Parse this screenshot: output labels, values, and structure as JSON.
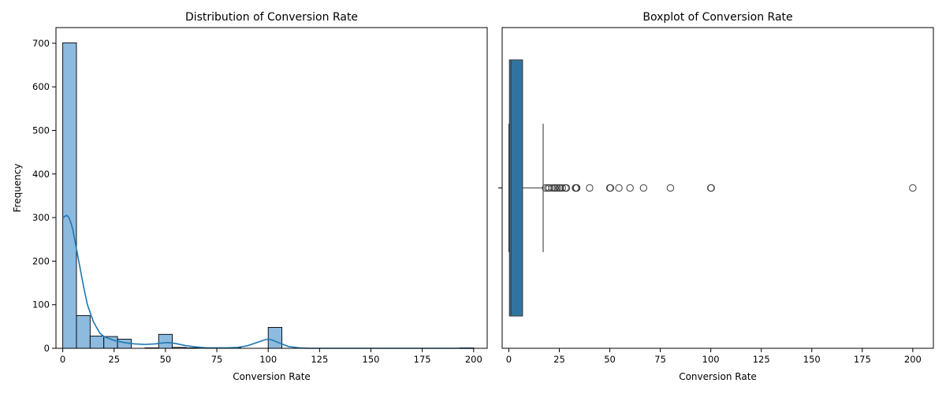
{
  "chart_data": [
    {
      "type": "bar",
      "subtype": "histogram-with-kde",
      "title": "Distribution of Conversion Rate",
      "xlabel": "Conversion Rate",
      "ylabel": "Frequency",
      "xlim": [
        -3.3,
        206.6
      ],
      "ylim": [
        0,
        736
      ],
      "xticks": [
        0,
        25,
        50,
        75,
        100,
        125,
        150,
        175,
        200
      ],
      "yticks": [
        0,
        100,
        200,
        300,
        400,
        500,
        600,
        700
      ],
      "bin_width": 6.67,
      "bins": [
        {
          "x0": 0.0,
          "x1": 6.67,
          "count": 701
        },
        {
          "x0": 6.67,
          "x1": 13.33,
          "count": 75
        },
        {
          "x0": 13.33,
          "x1": 20.0,
          "count": 28
        },
        {
          "x0": 20.0,
          "x1": 26.67,
          "count": 27
        },
        {
          "x0": 26.67,
          "x1": 33.33,
          "count": 21
        },
        {
          "x0": 33.33,
          "x1": 40.0,
          "count": 0
        },
        {
          "x0": 40.0,
          "x1": 46.67,
          "count": 1
        },
        {
          "x0": 46.67,
          "x1": 53.33,
          "count": 32
        },
        {
          "x0": 53.33,
          "x1": 60.0,
          "count": 2
        },
        {
          "x0": 60.0,
          "x1": 66.67,
          "count": 1
        },
        {
          "x0": 66.67,
          "x1": 73.33,
          "count": 0
        },
        {
          "x0": 73.33,
          "x1": 80.0,
          "count": 0
        },
        {
          "x0": 80.0,
          "x1": 86.67,
          "count": 1
        },
        {
          "x0": 86.67,
          "x1": 93.33,
          "count": 0
        },
        {
          "x0": 93.33,
          "x1": 100.0,
          "count": 0
        },
        {
          "x0": 100.0,
          "x1": 106.67,
          "count": 48
        },
        {
          "x0": 106.67,
          "x1": 113.33,
          "count": 0
        },
        {
          "x0": 193.33,
          "x1": 200.0,
          "count": 1
        }
      ],
      "kde": {
        "x": [
          0,
          1,
          2,
          3,
          4,
          5,
          6,
          8,
          10,
          12,
          15,
          18,
          20,
          25,
          30,
          35,
          40,
          45,
          48,
          50,
          52,
          55,
          60,
          65,
          70,
          75,
          80,
          85,
          90,
          95,
          98,
          100,
          102,
          105,
          110,
          115,
          120,
          130,
          150,
          175,
          200
        ],
        "y": [
          298,
          303,
          305,
          300,
          288,
          270,
          245,
          195,
          145,
          100,
          60,
          35,
          27,
          18,
          13,
          10,
          9,
          10,
          12,
          13,
          13,
          11,
          6,
          3,
          1,
          1,
          1,
          2,
          6,
          14,
          19,
          21,
          19,
          13,
          4,
          1,
          0,
          0,
          0,
          0,
          0
        ]
      },
      "bar_color": "#8dbadf",
      "line_color": "#1f77b4",
      "grid": false
    },
    {
      "type": "boxplot",
      "title": "Boxplot of Conversion Rate",
      "xlabel": "Conversion Rate",
      "ylabel": "",
      "xlim": [
        -3.3,
        210.2
      ],
      "xticks": [
        0,
        25,
        50,
        75,
        100,
        125,
        150,
        175,
        200
      ],
      "box": {
        "q1": 0.3,
        "median": 1.1,
        "q3": 6.8,
        "whisker_low": 0,
        "whisker_high": 17.0
      },
      "outliers": [
        18.2,
        19.3,
        20.0,
        21.4,
        22.5,
        23.0,
        24.0,
        25.0,
        25.5,
        26.5,
        28.0,
        28.5,
        33.0,
        33.3,
        33.6,
        40.0,
        50.0,
        50.3,
        54.5,
        60.0,
        66.7,
        80.0,
        100.0,
        100.2,
        200.0
      ],
      "box_color": "#3274a1",
      "grid": false
    }
  ]
}
